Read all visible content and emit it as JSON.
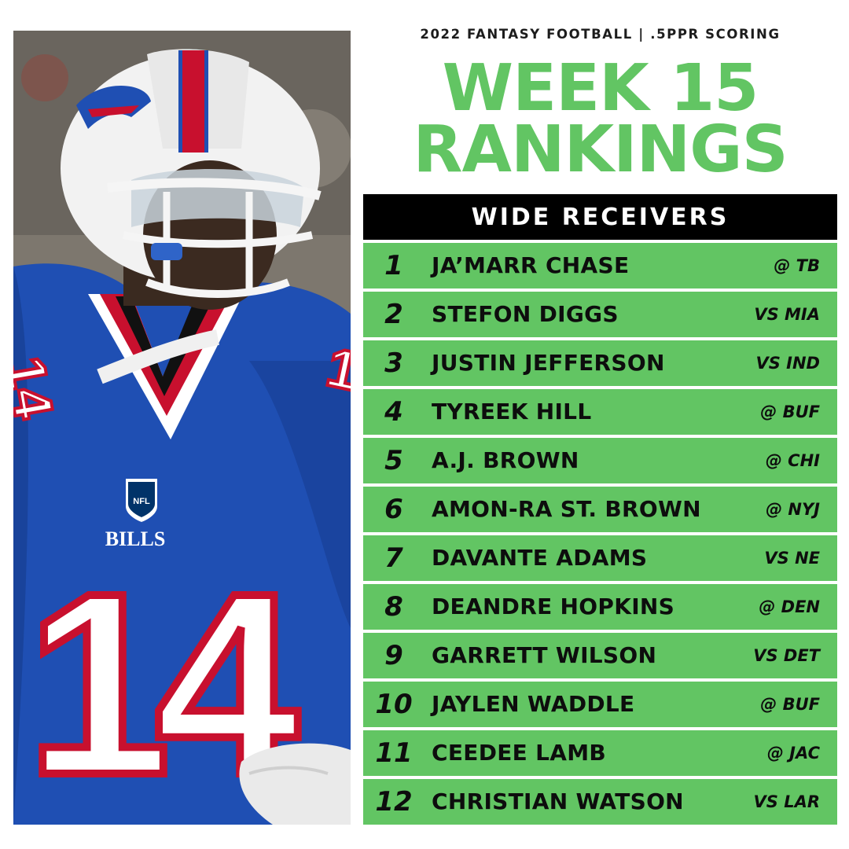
{
  "header": {
    "supertitle": "2022 FANTASY FOOTBALL | .5PPR SCORING",
    "title_line1": "WEEK 15",
    "title_line2": "RANKINGS"
  },
  "table": {
    "heading": "WIDE RECEIVERS",
    "rows": [
      {
        "rank": "1",
        "player": "JA’MARR CHASE",
        "matchup": "@ TB"
      },
      {
        "rank": "2",
        "player": "STEFON DIGGS",
        "matchup": "VS MIA"
      },
      {
        "rank": "3",
        "player": "JUSTIN JEFFERSON",
        "matchup": "VS IND"
      },
      {
        "rank": "4",
        "player": "TYREEK HILL",
        "matchup": "@ BUF"
      },
      {
        "rank": "5",
        "player": "A.J. BROWN",
        "matchup": "@ CHI"
      },
      {
        "rank": "6",
        "player": "AMON-RA ST. BROWN",
        "matchup": "@ NYJ"
      },
      {
        "rank": "7",
        "player": "DAVANTE ADAMS",
        "matchup": "VS NE"
      },
      {
        "rank": "8",
        "player": "DEANDRE HOPKINS",
        "matchup": "@ DEN"
      },
      {
        "rank": "9",
        "player": "GARRETT WILSON",
        "matchup": "VS DET"
      },
      {
        "rank": "10",
        "player": "JAYLEN WADDLE",
        "matchup": "@ BUF"
      },
      {
        "rank": "11",
        "player": "CEEDEE LAMB",
        "matchup": "@ JAC"
      },
      {
        "rank": "12",
        "player": "CHRISTIAN WATSON",
        "matchup": "VS LAR"
      }
    ]
  },
  "photo": {
    "jersey_number": "14",
    "jersey_wordmark": "BILLS",
    "shield_text": "NFL"
  },
  "colors": {
    "accent_green": "#62c563",
    "header_black": "#000000",
    "jersey_blue": "#1f4fb3",
    "jersey_red": "#c8102e"
  }
}
